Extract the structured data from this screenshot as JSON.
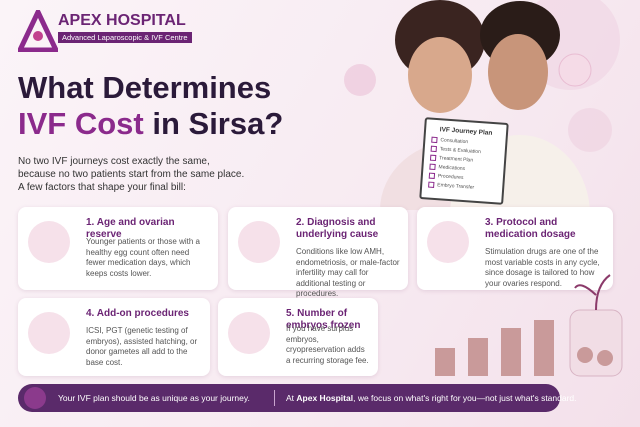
{
  "logo": {
    "name": "APEX HOSPITAL",
    "tagline": "Advanced Laparoscopic & IVF Centre"
  },
  "title": {
    "line1": "What Determines",
    "highlight": "IVF Cost",
    "rest": "in Sirsa?"
  },
  "intro": [
    "No two IVF journeys cost exactly the same,",
    "because no two patients start from the same place.",
    "A few factors that shape your final bill:"
  ],
  "clipboard": {
    "title": "IVF Journey Plan",
    "items": [
      "Consultation",
      "Tests & Evaluation",
      "Treatment Plan",
      "Medications",
      "Procedures",
      "Embryo Transfer"
    ]
  },
  "factors": [
    {
      "number": "1.",
      "title": "Age and ovarian reserve",
      "body": "Younger patients or those with a healthy egg count often need fewer medication days, which keeps costs lower."
    },
    {
      "number": "2.",
      "title": "Diagnosis and underlying cause",
      "body": "Conditions like low AMH, endometriosis, or male-factor infertility may call for additional testing or procedures."
    },
    {
      "number": "3.",
      "title": "Protocol and medication dosage",
      "body": "Stimulation drugs are one of the most variable costs in any cycle, since dosage is tailored to how your ovaries respond."
    },
    {
      "number": "4.",
      "title": "Add-on procedures",
      "body": "ICSI, PGT (genetic testing of embryos), assisted hatching, or donor gametes all add to the base cost."
    },
    {
      "number": "5.",
      "title": "Number of embryos frozen",
      "body": "If you have surplus embryos, cryopreservation adds a recurring storage fee."
    }
  ],
  "footer": {
    "left": "Your IVF plan should be as unique as your journey.",
    "right_prefix": "At",
    "right_bold": "Apex Hospital",
    "right_suffix": ", we focus on what's right for you—not just what's standard."
  }
}
